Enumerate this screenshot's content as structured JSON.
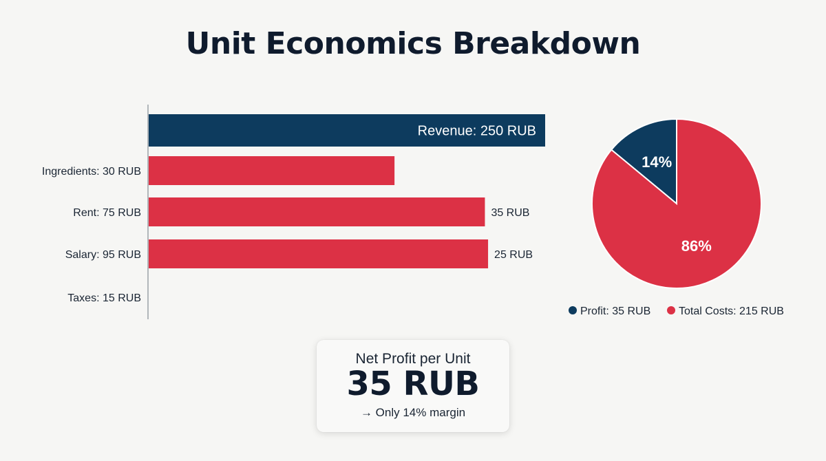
{
  "title": "Unit Economics Breakdown",
  "colors": {
    "revenue": "#0d3b5e",
    "cost": "#dc3145",
    "profit": "#0d3b5e",
    "text": "#1a2533",
    "axis": "#9aa0a6"
  },
  "chart_data": [
    {
      "type": "bar",
      "orientation": "horizontal",
      "categories": [
        "Ingredients: 30 RUB",
        "Rent: 75 RUB",
        "Salary: 95 RUB",
        "Taxes: 15 RUB"
      ],
      "bars": [
        {
          "label": "Revenue: 250 RUB",
          "value": 250,
          "color": "#0d3b5e",
          "value_label": ""
        },
        {
          "label": "Ingredients: 30 RUB",
          "value": 155,
          "color": "#dc3145",
          "value_label": ""
        },
        {
          "label": "Rent: 75 RUB",
          "value": 212,
          "color": "#dc3145",
          "value_label": "35 RUB"
        },
        {
          "label": "Salary: 95 RUB",
          "value": 214,
          "color": "#dc3145",
          "value_label": "25 RUB"
        },
        {
          "label": "Taxes: 15 RUB",
          "value": 0,
          "color": "#dc3145",
          "value_label": ""
        }
      ],
      "xlim": [
        0,
        250
      ]
    },
    {
      "type": "pie",
      "slices": [
        {
          "name": "Profit: 35 RUB",
          "value": 14,
          "label": "14%",
          "color": "#0d3b5e"
        },
        {
          "name": "Total Costs: 215 RUB",
          "value": 86,
          "label": "86%",
          "color": "#dc3145"
        }
      ],
      "legend": [
        "Profit: 35 RUB",
        "Total Costs: 215 RUB"
      ],
      "legend_position": "bottom"
    }
  ],
  "summary": {
    "label": "Net Profit per Unit",
    "value": "35 RUB",
    "note": "→ Only 14% margin"
  }
}
